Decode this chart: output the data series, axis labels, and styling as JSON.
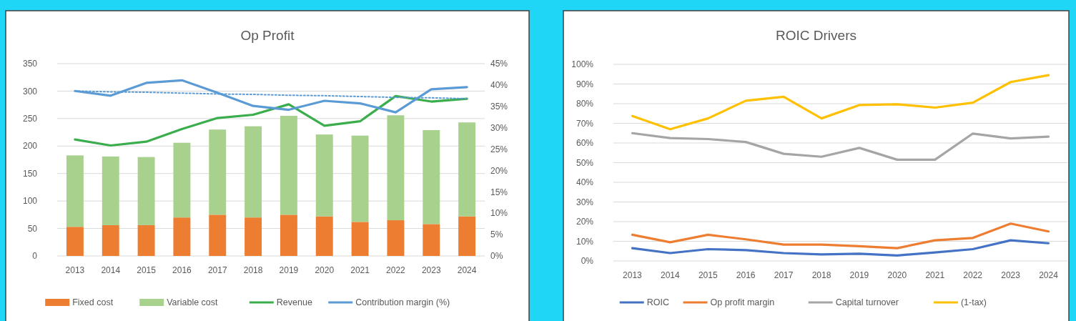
{
  "chart_data": [
    {
      "type": "bar",
      "title": "Op Profit",
      "categories": [
        "2013",
        "2014",
        "2015",
        "2016",
        "2017",
        "2018",
        "2019",
        "2020",
        "2021",
        "2022",
        "2023",
        "2024"
      ],
      "stacked": true,
      "grid": "y",
      "legend": "bottom",
      "ylim": [
        0,
        350
      ],
      "yticks": [
        0,
        50,
        100,
        150,
        200,
        250,
        300,
        350
      ],
      "y2lim": [
        0,
        45
      ],
      "y2ticks": [
        {
          "value": 0,
          "label": "0%"
        },
        {
          "value": 5,
          "label": "5%"
        },
        {
          "value": 10,
          "label": "10%"
        },
        {
          "value": 15,
          "label": "15%"
        },
        {
          "value": 20,
          "label": "20%"
        },
        {
          "value": 25,
          "label": "25%"
        },
        {
          "value": 30,
          "label": "30%"
        },
        {
          "value": 35,
          "label": "35%"
        },
        {
          "value": 40,
          "label": "40%"
        },
        {
          "value": 45,
          "label": "45%"
        }
      ],
      "series": [
        {
          "name": "Fixed cost",
          "color": "#ed7d31",
          "values": [
            53,
            56,
            56,
            70,
            75,
            70,
            75,
            72,
            62,
            65,
            58,
            72
          ]
        },
        {
          "name": "Variable cost",
          "color": "#a9d18e",
          "values": [
            130,
            125,
            124,
            136,
            155,
            166,
            180,
            149,
            157,
            191,
            171,
            171
          ]
        },
        {
          "name": "Revenue",
          "type": "line",
          "color": "#3aad4c",
          "values": [
            212,
            201,
            208,
            231,
            251,
            257,
            276,
            237,
            245,
            291,
            281,
            286
          ]
        },
        {
          "name": "Contribution margin (%)",
          "type": "line",
          "axis": "y2",
          "color": "#5b9bd5",
          "values": [
            38.6,
            37.5,
            40.5,
            41.1,
            38.2,
            35.1,
            34.2,
            36.3,
            35.7,
            33.6,
            39.0,
            39.5
          ]
        },
        {
          "type": "line",
          "axis": "y2",
          "line_style": "dotted",
          "color": "#5b9bd5",
          "values": [
            38.6,
            38.4,
            38.3,
            38.1,
            37.9,
            37.8,
            37.6,
            37.5,
            37.3,
            37.1,
            37.0,
            36.8
          ]
        }
      ]
    },
    {
      "type": "line",
      "title": "ROIC Drivers",
      "categories": [
        "2013",
        "2014",
        "2015",
        "2016",
        "2017",
        "2018",
        "2019",
        "2020",
        "2021",
        "2022",
        "2023",
        "2024"
      ],
      "grid": "y",
      "legend": "bottom",
      "ylim": [
        0,
        100
      ],
      "yticks": [
        {
          "value": 0,
          "label": "0%"
        },
        {
          "value": 10,
          "label": "10%"
        },
        {
          "value": 20,
          "label": "20%"
        },
        {
          "value": 30,
          "label": "30%"
        },
        {
          "value": 40,
          "label": "40%"
        },
        {
          "value": 50,
          "label": "50%"
        },
        {
          "value": 60,
          "label": "60%"
        },
        {
          "value": 70,
          "label": "70%"
        },
        {
          "value": 80,
          "label": "80%"
        },
        {
          "value": 90,
          "label": "90%"
        },
        {
          "value": 100,
          "label": "100%"
        }
      ],
      "series": [
        {
          "name": "ROIC",
          "color": "#4472c4",
          "values": [
            6.5,
            4,
            6,
            5.5,
            4,
            3.3,
            3.7,
            2.8,
            4.3,
            6,
            10.5,
            9
          ]
        },
        {
          "name": "Op profit margin",
          "color": "#ed7d31",
          "values": [
            13.3,
            9.5,
            13.3,
            11,
            8.3,
            8.3,
            7.5,
            6.5,
            10.5,
            11.7,
            19,
            15
          ]
        },
        {
          "name": "Capital turnover",
          "color": "#a5a5a5",
          "values": [
            65,
            62.5,
            62,
            60.5,
            54.5,
            53,
            57.5,
            51.5,
            51.5,
            64.8,
            62.3,
            63.2
          ]
        },
        {
          "name": "(1-tax)",
          "color": "#ffc000",
          "values": [
            73.7,
            67,
            72.5,
            81.5,
            83.5,
            72.5,
            79.3,
            79.7,
            78,
            80.5,
            91,
            94.5
          ]
        }
      ]
    }
  ]
}
